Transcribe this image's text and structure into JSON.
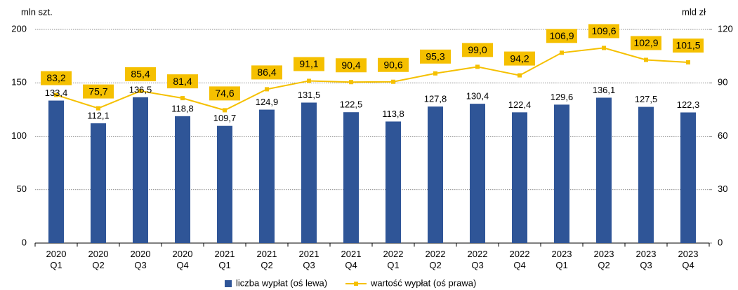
{
  "chart_data": {
    "type": "bar_line",
    "y_label": "mln szt.",
    "y2_label": "mld zł",
    "categories": [
      "2020 Q1",
      "2020 Q2",
      "2020 Q3",
      "2020 Q4",
      "2021 Q1",
      "2021 Q2",
      "2021 Q3",
      "2021 Q4",
      "2022 Q1",
      "2022 Q2",
      "2022 Q3",
      "2022 Q4",
      "2023 Q1",
      "2023 Q2",
      "2023 Q3",
      "2023 Q4"
    ],
    "series": [
      {
        "name": "liczba wypłat  (oś lewa)",
        "type": "bar",
        "axis": "y",
        "color": "#2f5597",
        "values": [
          133.4,
          112.1,
          136.5,
          118.8,
          109.7,
          124.9,
          131.5,
          122.5,
          113.8,
          127.8,
          130.4,
          122.4,
          129.6,
          136.1,
          127.5,
          122.3
        ],
        "value_labels": [
          "133,4",
          "112,1",
          "136,5",
          "118,8",
          "109,7",
          "124,9",
          "131,5",
          "122,5",
          "113,8",
          "127,8",
          "130,4",
          "122,4",
          "129,6",
          "136,1",
          "127,5",
          "122,3"
        ]
      },
      {
        "name": "wartość wypłat (oś prawa)",
        "type": "line",
        "axis": "y2",
        "color": "#f5c000",
        "values": [
          83.2,
          75.7,
          85.4,
          81.4,
          74.6,
          86.4,
          91.1,
          90.4,
          90.6,
          95.3,
          99.0,
          94.2,
          106.9,
          109.6,
          102.9,
          101.5
        ],
        "value_labels": [
          "83,2",
          "75,7",
          "85,4",
          "81,4",
          "74,6",
          "86,4",
          "91,1",
          "90,4",
          "90,6",
          "95,3",
          "99,0",
          "94,2",
          "106,9",
          "109,6",
          "102,9",
          "101,5"
        ]
      }
    ],
    "ylim": [
      0,
      200
    ],
    "yticks": [
      0,
      50,
      100,
      150,
      200
    ],
    "y2lim": [
      0,
      120
    ],
    "y2ticks": [
      0,
      30,
      60,
      90,
      120
    ],
    "grid": true,
    "legend": "bottom"
  }
}
